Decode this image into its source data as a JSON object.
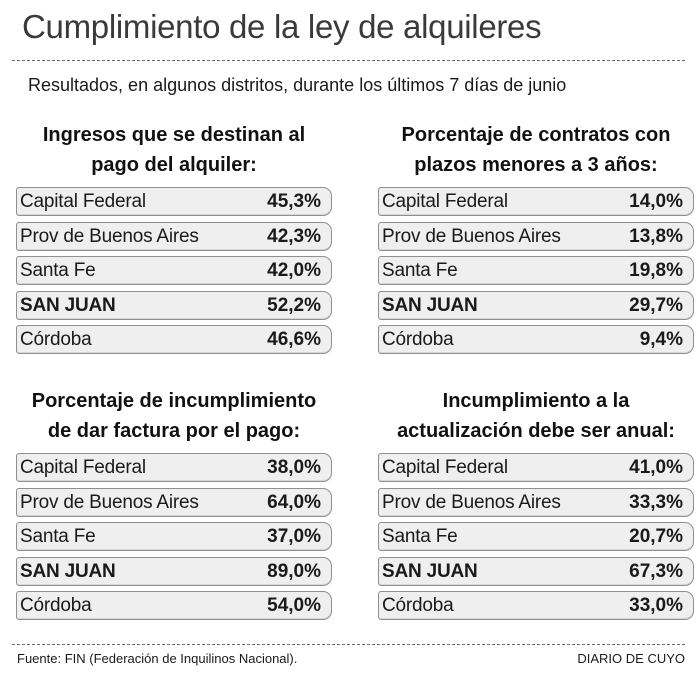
{
  "header": {
    "title": "Cumplimiento de la ley de alquileres",
    "subtitle": "Resultados, en algunos distritos, durante los últimos 7 días de junio"
  },
  "chart_data": [
    {
      "type": "table",
      "title_lines": [
        "Ingresos que se destinan al",
        "pago del alquiler:"
      ],
      "rows": [
        {
          "label": "Capital Federal",
          "value": "45,3%",
          "highlight": false
        },
        {
          "label": "Prov de Buenos Aires",
          "value": "42,3%",
          "highlight": false
        },
        {
          "label": "Santa Fe",
          "value": "42,0%",
          "highlight": false
        },
        {
          "label": "SAN JUAN",
          "value": "52,2%",
          "highlight": true
        },
        {
          "label": "Córdoba",
          "value": "46,6%",
          "highlight": false
        }
      ]
    },
    {
      "type": "table",
      "title_lines": [
        "Porcentaje de contratos con",
        "plazos menores a 3 años:"
      ],
      "rows": [
        {
          "label": "Capital Federal",
          "value": "14,0%",
          "highlight": false
        },
        {
          "label": "Prov de Buenos Aires",
          "value": "13,8%",
          "highlight": false
        },
        {
          "label": "Santa Fe",
          "value": "19,8%",
          "highlight": false
        },
        {
          "label": "SAN JUAN",
          "value": "29,7%",
          "highlight": true
        },
        {
          "label": "Córdoba",
          "value": "9,4%",
          "highlight": false
        }
      ]
    },
    {
      "type": "table",
      "title_lines": [
        "Porcentaje de incumplimiento",
        "de dar factura por el pago:"
      ],
      "rows": [
        {
          "label": "Capital Federal",
          "value": "38,0%",
          "highlight": false
        },
        {
          "label": "Prov de Buenos Aires",
          "value": "64,0%",
          "highlight": false
        },
        {
          "label": "Santa Fe",
          "value": "37,0%",
          "highlight": false
        },
        {
          "label": "SAN JUAN",
          "value": "89,0%",
          "highlight": true
        },
        {
          "label": "Córdoba",
          "value": "54,0%",
          "highlight": false
        }
      ]
    },
    {
      "type": "table",
      "title_lines": [
        "Incumplimiento a la",
        "actualización debe ser anual:"
      ],
      "rows": [
        {
          "label": "Capital Federal",
          "value": "41,0%",
          "highlight": false
        },
        {
          "label": "Prov de Buenos Aires",
          "value": "33,3%",
          "highlight": false
        },
        {
          "label": "Santa Fe",
          "value": "20,7%",
          "highlight": false
        },
        {
          "label": "SAN JUAN",
          "value": "67,3%",
          "highlight": true
        },
        {
          "label": "Córdoba",
          "value": "33,0%",
          "highlight": false
        }
      ]
    }
  ],
  "footer": {
    "source": "Fuente: FIN (Federación de Inquilinos Nacional).",
    "brand": "DIARIO DE CUYO"
  }
}
